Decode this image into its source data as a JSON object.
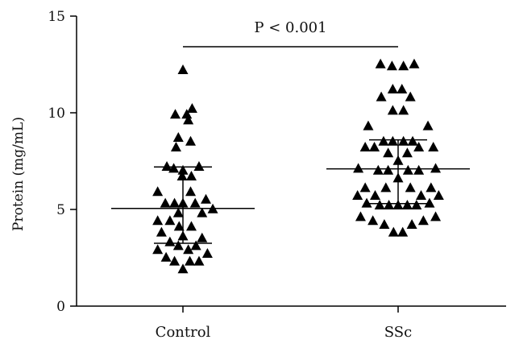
{
  "chart_data": {
    "type": "scatter",
    "subtype": "dot-plot-with-mean-sd",
    "title": "",
    "xlabel": "",
    "ylabel": "Protein (mg/mL)",
    "ylim": [
      0,
      15
    ],
    "yticks": [
      0,
      5,
      10,
      15
    ],
    "categories": [
      "Control",
      "SSc"
    ],
    "marker": "triangle",
    "marker_color": "#000000",
    "annotation": "P < 0.001",
    "groups": [
      {
        "name": "Control",
        "mean": 5.05,
        "sd_low": 3.25,
        "sd_high": 7.2,
        "points": [
          {
            "dx": 0.0,
            "y": 12.2
          },
          {
            "dx": 0.6,
            "y": 10.2
          },
          {
            "dx": -0.5,
            "y": 9.9
          },
          {
            "dx": 0.25,
            "y": 9.9
          },
          {
            "dx": 0.35,
            "y": 9.6
          },
          {
            "dx": -0.3,
            "y": 8.7
          },
          {
            "dx": 0.5,
            "y": 8.5
          },
          {
            "dx": -0.45,
            "y": 8.2
          },
          {
            "dx": -1.05,
            "y": 7.2
          },
          {
            "dx": -0.6,
            "y": 7.1
          },
          {
            "dx": 0.0,
            "y": 7.0
          },
          {
            "dx": 1.05,
            "y": 7.2
          },
          {
            "dx": -0.05,
            "y": 6.7
          },
          {
            "dx": 0.55,
            "y": 6.7
          },
          {
            "dx": -1.65,
            "y": 5.9
          },
          {
            "dx": 0.5,
            "y": 5.9
          },
          {
            "dx": -1.15,
            "y": 5.3
          },
          {
            "dx": -0.55,
            "y": 5.3
          },
          {
            "dx": 0.0,
            "y": 5.3
          },
          {
            "dx": 0.8,
            "y": 5.3
          },
          {
            "dx": 1.5,
            "y": 5.5
          },
          {
            "dx": 1.95,
            "y": 5.0
          },
          {
            "dx": -0.3,
            "y": 4.8
          },
          {
            "dx": 1.25,
            "y": 4.8
          },
          {
            "dx": -1.65,
            "y": 4.4
          },
          {
            "dx": -0.85,
            "y": 4.4
          },
          {
            "dx": -0.25,
            "y": 4.1
          },
          {
            "dx": 0.55,
            "y": 4.1
          },
          {
            "dx": -1.4,
            "y": 3.8
          },
          {
            "dx": 0.0,
            "y": 3.6
          },
          {
            "dx": 1.25,
            "y": 3.5
          },
          {
            "dx": -0.85,
            "y": 3.3
          },
          {
            "dx": -0.3,
            "y": 3.1
          },
          {
            "dx": 0.85,
            "y": 3.1
          },
          {
            "dx": -1.65,
            "y": 2.9
          },
          {
            "dx": 0.35,
            "y": 2.9
          },
          {
            "dx": 1.6,
            "y": 2.7
          },
          {
            "dx": -1.1,
            "y": 2.5
          },
          {
            "dx": -0.55,
            "y": 2.3
          },
          {
            "dx": 0.45,
            "y": 2.3
          },
          {
            "dx": 1.05,
            "y": 2.3
          },
          {
            "dx": 0.0,
            "y": 1.9
          }
        ]
      },
      {
        "name": "SSc",
        "mean": 7.1,
        "sd_low": 5.3,
        "sd_high": 8.6,
        "points": [
          {
            "dx": -1.15,
            "y": 12.5
          },
          {
            "dx": -0.4,
            "y": 12.4
          },
          {
            "dx": 0.35,
            "y": 12.4
          },
          {
            "dx": 1.05,
            "y": 12.5
          },
          {
            "dx": -0.35,
            "y": 11.2
          },
          {
            "dx": 0.25,
            "y": 11.2
          },
          {
            "dx": -1.1,
            "y": 10.8
          },
          {
            "dx": 0.8,
            "y": 10.8
          },
          {
            "dx": -0.35,
            "y": 10.1
          },
          {
            "dx": 0.35,
            "y": 10.1
          },
          {
            "dx": -1.95,
            "y": 9.3
          },
          {
            "dx": 1.95,
            "y": 9.3
          },
          {
            "dx": -0.95,
            "y": 8.5
          },
          {
            "dx": -0.35,
            "y": 8.5
          },
          {
            "dx": 0.35,
            "y": 8.5
          },
          {
            "dx": 0.95,
            "y": 8.5
          },
          {
            "dx": -2.15,
            "y": 8.2
          },
          {
            "dx": -1.55,
            "y": 8.2
          },
          {
            "dx": 1.35,
            "y": 8.2
          },
          {
            "dx": 2.3,
            "y": 8.2
          },
          {
            "dx": -0.65,
            "y": 7.9
          },
          {
            "dx": 0.6,
            "y": 7.9
          },
          {
            "dx": 0.0,
            "y": 7.5
          },
          {
            "dx": -2.6,
            "y": 7.1
          },
          {
            "dx": -1.3,
            "y": 7.0
          },
          {
            "dx": -0.65,
            "y": 7.0
          },
          {
            "dx": 0.65,
            "y": 7.0
          },
          {
            "dx": 1.35,
            "y": 7.0
          },
          {
            "dx": 2.45,
            "y": 7.1
          },
          {
            "dx": 0.0,
            "y": 6.6
          },
          {
            "dx": -2.15,
            "y": 6.1
          },
          {
            "dx": -0.8,
            "y": 6.1
          },
          {
            "dx": 0.8,
            "y": 6.1
          },
          {
            "dx": 2.15,
            "y": 6.1
          },
          {
            "dx": -2.65,
            "y": 5.7
          },
          {
            "dx": -1.5,
            "y": 5.7
          },
          {
            "dx": 1.5,
            "y": 5.7
          },
          {
            "dx": 2.65,
            "y": 5.7
          },
          {
            "dx": -2.05,
            "y": 5.3
          },
          {
            "dx": -1.2,
            "y": 5.2
          },
          {
            "dx": -0.6,
            "y": 5.2
          },
          {
            "dx": 0.0,
            "y": 5.2
          },
          {
            "dx": 0.6,
            "y": 5.2
          },
          {
            "dx": 1.2,
            "y": 5.2
          },
          {
            "dx": 2.05,
            "y": 5.3
          },
          {
            "dx": -2.45,
            "y": 4.6
          },
          {
            "dx": 2.45,
            "y": 4.6
          },
          {
            "dx": -1.65,
            "y": 4.4
          },
          {
            "dx": 1.65,
            "y": 4.4
          },
          {
            "dx": -0.9,
            "y": 4.2
          },
          {
            "dx": 0.9,
            "y": 4.2
          },
          {
            "dx": -0.3,
            "y": 3.8
          },
          {
            "dx": 0.3,
            "y": 3.8
          }
        ]
      }
    ]
  }
}
